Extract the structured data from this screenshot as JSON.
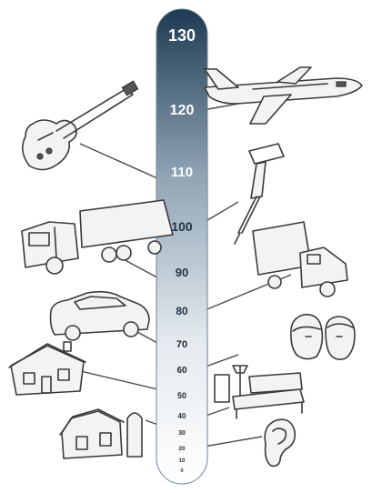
{
  "meter": {
    "labels": [
      "130",
      "120",
      "110",
      "100",
      "90",
      "80",
      "70",
      "60",
      "50",
      "40",
      "30",
      "20",
      "10",
      "0"
    ],
    "gradient_top": "#1e3a52",
    "gradient_bottom": "#ffffff"
  },
  "illustrations": [
    {
      "name": "jet-airplane-icon",
      "level": "120"
    },
    {
      "name": "electric-guitar-icon",
      "level": "110"
    },
    {
      "name": "jackhammer-icon",
      "level": "100"
    },
    {
      "name": "semi-truck-icon",
      "level": "90"
    },
    {
      "name": "box-truck-icon",
      "level": "80"
    },
    {
      "name": "car-icon",
      "level": "70"
    },
    {
      "name": "people-faces-icon",
      "level": "60"
    },
    {
      "name": "house-icon",
      "level": "50"
    },
    {
      "name": "living-room-icon",
      "level": "40"
    },
    {
      "name": "farm-barn-icon",
      "level": "30"
    },
    {
      "name": "ear-icon",
      "level": "20"
    }
  ]
}
